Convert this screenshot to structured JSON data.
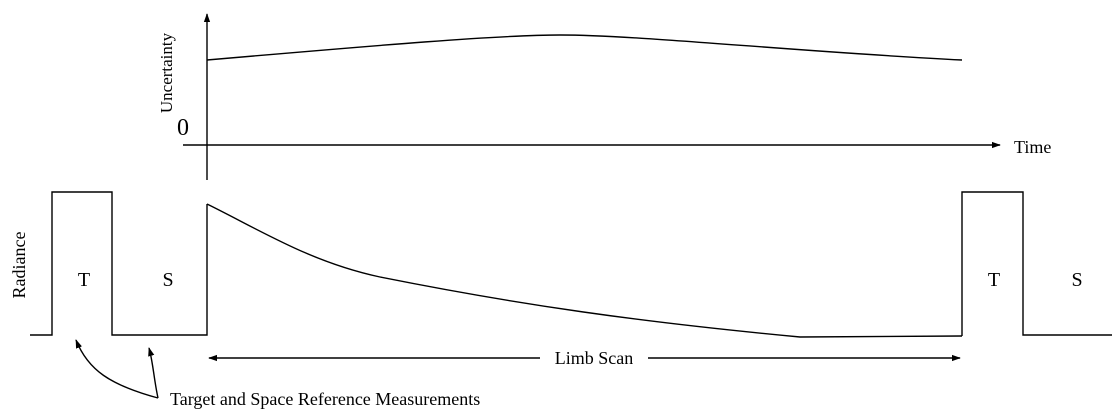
{
  "labels": {
    "uncertainty_axis": "Uncertainty",
    "zero": "0",
    "time_axis": "Time",
    "radiance_axis": "Radiance",
    "target_1": "T",
    "space_1": "S",
    "target_2": "T",
    "space_2": "S",
    "limb_scan": "Limb Scan",
    "reference_note": "Target and Space Reference Measurements"
  },
  "colors": {
    "line": "#000000",
    "background": "#ffffff"
  }
}
